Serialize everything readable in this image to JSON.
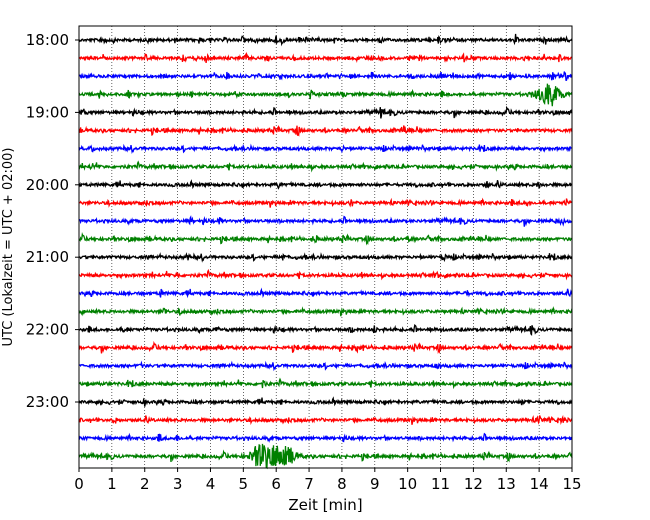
{
  "chart_data": {
    "type": "line",
    "xlabel": "Zeit  [min]",
    "ylabel": "UTC (Lokalzeit = UTC + 02:00)",
    "xlim": [
      0,
      15
    ],
    "x_ticks": [
      0,
      1,
      2,
      3,
      4,
      5,
      6,
      7,
      8,
      9,
      10,
      11,
      12,
      13,
      14,
      15
    ],
    "x_tick_labels": [
      "0",
      "1",
      "2",
      "3",
      "4",
      "5",
      "6",
      "7",
      "8",
      "9",
      "10",
      "11",
      "12",
      "13",
      "14",
      "15"
    ],
    "y_tick_labels": [
      "18:00",
      "19:00",
      "20:00",
      "21:00",
      "22:00",
      "23:00"
    ],
    "grid": "vertical dotted",
    "trace_interval_minutes": 15,
    "color_cycle": [
      "#000000",
      "#ff0000",
      "#0000ff",
      "#008000"
    ],
    "series": [
      {
        "start": "18:00",
        "color": "#000000",
        "events": [
          {
            "t": 6.0,
            "amp": 1.3
          },
          {
            "t": 13.3,
            "amp": 1.2
          },
          {
            "t": 14.2,
            "amp": 1.1
          }
        ]
      },
      {
        "start": "18:15",
        "color": "#ff0000",
        "events": [
          {
            "t": 3.9,
            "amp": 0.9
          },
          {
            "t": 5.1,
            "amp": 1.0
          },
          {
            "t": 8.5,
            "amp": 0.7
          }
        ]
      },
      {
        "start": "18:30",
        "color": "#0000ff",
        "events": [
          {
            "t": 4.9,
            "amp": 0.9
          },
          {
            "t": 11.4,
            "amp": 1.0
          },
          {
            "t": 14.8,
            "amp": 1.5
          }
        ]
      },
      {
        "start": "18:45",
        "color": "#008000",
        "events": [
          {
            "t": 1.5,
            "amp": 1.0
          },
          {
            "t": 14.3,
            "amp": 3.4
          }
        ]
      },
      {
        "start": "19:00",
        "color": "#000000",
        "events": [
          {
            "t": 0.1,
            "amp": 1.6
          },
          {
            "t": 9.2,
            "amp": 1.7
          }
        ]
      },
      {
        "start": "19:15",
        "color": "#ff0000",
        "events": [
          {
            "t": 6.6,
            "amp": 1.0
          },
          {
            "t": 9.9,
            "amp": 1.2
          }
        ]
      },
      {
        "start": "19:30",
        "color": "#0000ff",
        "events": [
          {
            "t": 0.4,
            "amp": 0.9
          },
          {
            "t": 8.0,
            "amp": 0.8
          }
        ]
      },
      {
        "start": "19:45",
        "color": "#008000",
        "events": [
          {
            "t": 0.4,
            "amp": 1.0
          },
          {
            "t": 7.0,
            "amp": 0.8
          }
        ]
      },
      {
        "start": "20:00",
        "color": "#000000",
        "events": [
          {
            "t": 6.1,
            "amp": 1.0
          },
          {
            "t": 12.4,
            "amp": 1.0
          },
          {
            "t": 14.0,
            "amp": 1.0
          }
        ]
      },
      {
        "start": "20:15",
        "color": "#ff0000",
        "events": [
          {
            "t": 8.3,
            "amp": 0.9
          },
          {
            "t": 13.6,
            "amp": 1.1
          },
          {
            "t": 14.8,
            "amp": 1.2
          }
        ]
      },
      {
        "start": "20:30",
        "color": "#0000ff",
        "events": [
          {
            "t": 3.4,
            "amp": 0.9
          },
          {
            "t": 4.3,
            "amp": 1.0
          },
          {
            "t": 14.7,
            "amp": 1.0
          }
        ]
      },
      {
        "start": "20:45",
        "color": "#008000",
        "events": [
          {
            "t": 7.2,
            "amp": 0.9
          },
          {
            "t": 10.0,
            "amp": 0.8
          }
        ]
      },
      {
        "start": "21:00",
        "color": "#000000",
        "events": [
          {
            "t": 3.3,
            "amp": 0.7
          },
          {
            "t": 6.2,
            "amp": 1.2
          },
          {
            "t": 11.1,
            "amp": 0.8
          }
        ]
      },
      {
        "start": "21:15",
        "color": "#ff0000",
        "events": [
          {
            "t": 3.0,
            "amp": 0.7
          },
          {
            "t": 10.9,
            "amp": 0.8
          }
        ]
      },
      {
        "start": "21:30",
        "color": "#0000ff",
        "events": [
          {
            "t": 2.5,
            "amp": 1.1
          },
          {
            "t": 11.8,
            "amp": 0.7
          }
        ]
      },
      {
        "start": "21:45",
        "color": "#008000",
        "events": [
          {
            "t": 2.6,
            "amp": 1.2
          },
          {
            "t": 3.1,
            "amp": 0.8
          }
        ]
      },
      {
        "start": "22:00",
        "color": "#000000",
        "events": [
          {
            "t": 1.4,
            "amp": 0.9
          },
          {
            "t": 4.2,
            "amp": 0.8
          },
          {
            "t": 8.3,
            "amp": 0.9
          },
          {
            "t": 9.0,
            "amp": 1.1
          },
          {
            "t": 13.8,
            "amp": 1.0
          }
        ]
      },
      {
        "start": "22:15",
        "color": "#ff0000",
        "events": [
          {
            "t": 8.5,
            "amp": 1.2
          }
        ]
      },
      {
        "start": "22:30",
        "color": "#0000ff",
        "events": [
          {
            "t": 1.9,
            "amp": 0.7
          },
          {
            "t": 10.9,
            "amp": 0.7
          }
        ]
      },
      {
        "start": "22:45",
        "color": "#008000",
        "events": [
          {
            "t": 0.9,
            "amp": 0.8
          },
          {
            "t": 5.6,
            "amp": 1.3
          }
        ]
      },
      {
        "start": "23:00",
        "color": "#000000",
        "events": [
          {
            "t": 2.0,
            "amp": 0.7
          },
          {
            "t": 13.5,
            "amp": 0.9
          }
        ]
      },
      {
        "start": "23:15",
        "color": "#ff0000",
        "events": [
          {
            "t": 1.1,
            "amp": 0.8
          },
          {
            "t": 14.0,
            "amp": 1.2
          },
          {
            "t": 14.7,
            "amp": 1.1
          }
        ]
      },
      {
        "start": "23:30",
        "color": "#0000ff",
        "events": [
          {
            "t": 2.5,
            "amp": 0.7
          },
          {
            "t": 3.0,
            "amp": 0.8
          }
        ]
      },
      {
        "start": "23:45",
        "color": "#008000",
        "events": [
          {
            "t": 5.6,
            "amp": 3.8
          },
          {
            "t": 6.2,
            "amp": 3.2
          }
        ]
      }
    ]
  }
}
